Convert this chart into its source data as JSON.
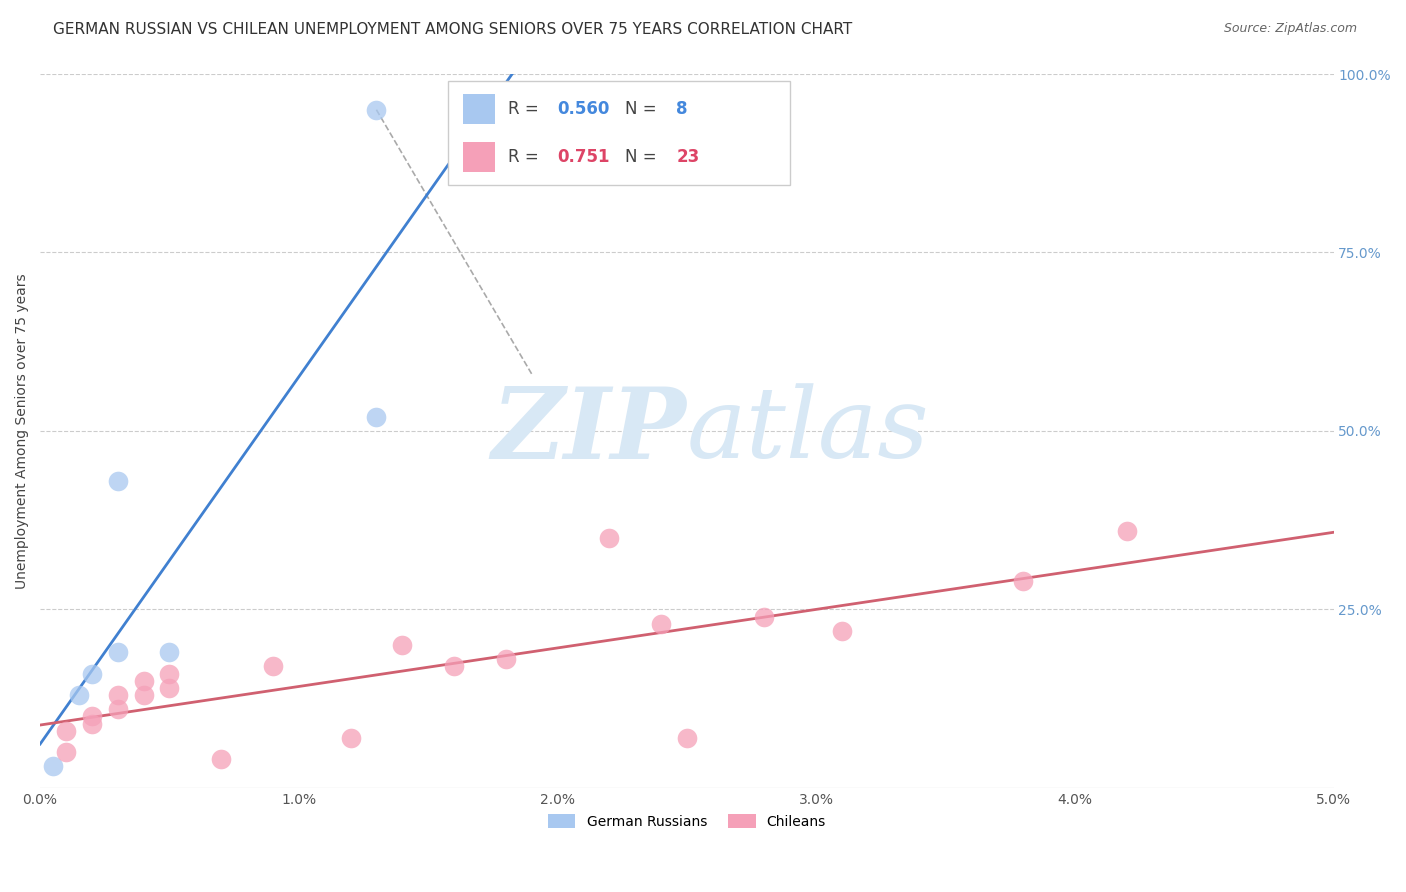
{
  "title": "GERMAN RUSSIAN VS CHILEAN UNEMPLOYMENT AMONG SENIORS OVER 75 YEARS CORRELATION CHART",
  "source": "Source: ZipAtlas.com",
  "ylabel": "Unemployment Among Seniors over 75 years",
  "xlim": [
    0.0,
    0.05
  ],
  "ylim": [
    0.0,
    1.0
  ],
  "xtick_labels": [
    "0.0%",
    "1.0%",
    "2.0%",
    "3.0%",
    "4.0%",
    "5.0%"
  ],
  "xtick_vals": [
    0.0,
    0.01,
    0.02,
    0.03,
    0.04,
    0.05
  ],
  "ytick_labels": [
    "25.0%",
    "50.0%",
    "75.0%",
    "100.0%"
  ],
  "ytick_vals": [
    0.25,
    0.5,
    0.75,
    1.0
  ],
  "german_russian_x": [
    0.0005,
    0.0015,
    0.002,
    0.003,
    0.003,
    0.005,
    0.013,
    0.013
  ],
  "german_russian_y": [
    0.03,
    0.13,
    0.16,
    0.43,
    0.19,
    0.19,
    0.52,
    0.95
  ],
  "chilean_x": [
    0.001,
    0.001,
    0.002,
    0.002,
    0.003,
    0.003,
    0.004,
    0.004,
    0.005,
    0.005,
    0.007,
    0.009,
    0.012,
    0.014,
    0.016,
    0.018,
    0.022,
    0.024,
    0.025,
    0.028,
    0.031,
    0.038,
    0.042
  ],
  "chilean_y": [
    0.05,
    0.08,
    0.1,
    0.09,
    0.11,
    0.13,
    0.15,
    0.13,
    0.16,
    0.14,
    0.04,
    0.17,
    0.07,
    0.2,
    0.17,
    0.18,
    0.35,
    0.23,
    0.07,
    0.24,
    0.22,
    0.29,
    0.36
  ],
  "gr_R": 0.56,
  "gr_N": 8,
  "ch_R": 0.751,
  "ch_N": 23,
  "gr_color": "#a8c8f0",
  "ch_color": "#f5a0b8",
  "gr_line_color": "#4080d0",
  "ch_line_color": "#d06070",
  "gr_text_color": "#4488dd",
  "ch_text_color": "#dd4466",
  "watermark_color": "#d8e8f5",
  "background_color": "#ffffff",
  "grid_color": "#cccccc",
  "title_color": "#333333",
  "right_axis_color": "#6699cc",
  "title_fontsize": 11,
  "source_fontsize": 9,
  "ylabel_fontsize": 10
}
